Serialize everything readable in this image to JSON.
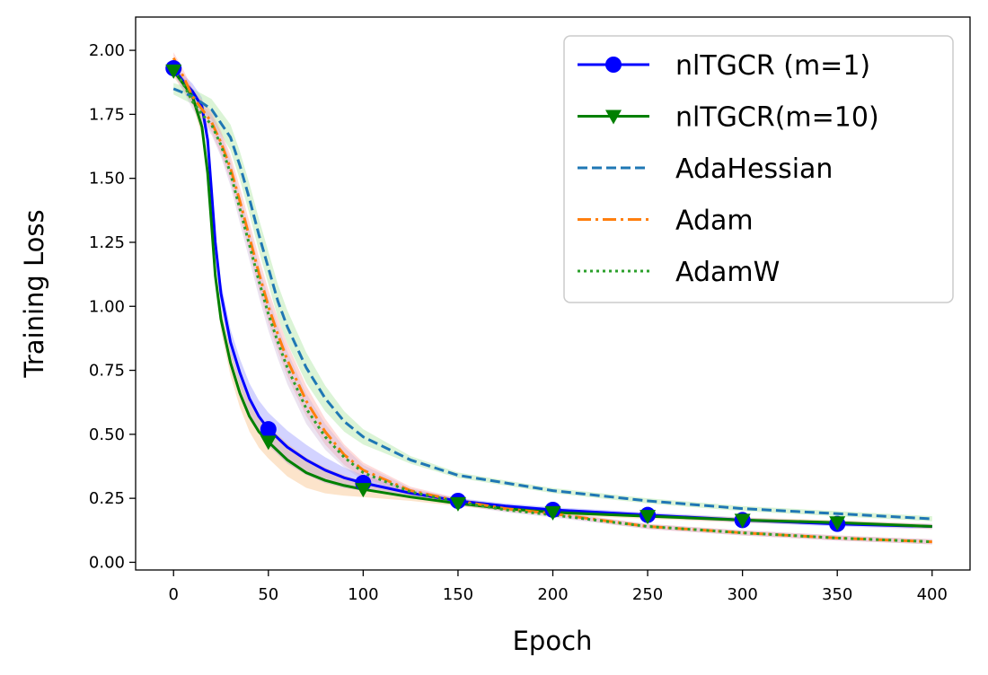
{
  "chart_data": {
    "type": "line",
    "title": "",
    "xlabel": "Epoch",
    "ylabel": "Training Loss",
    "xlim": [
      -20,
      420
    ],
    "ylim": [
      -0.03,
      2.13
    ],
    "xticks": [
      0,
      50,
      100,
      150,
      200,
      250,
      300,
      350,
      400
    ],
    "xtick_labels": [
      "0",
      "50",
      "100",
      "150",
      "200",
      "250",
      "300",
      "350",
      "400"
    ],
    "yticks": [
      0.0,
      0.25,
      0.5,
      0.75,
      1.0,
      1.25,
      1.5,
      1.75,
      2.0
    ],
    "ytick_labels": [
      "0.00",
      "0.25",
      "0.50",
      "0.75",
      "1.00",
      "1.25",
      "1.50",
      "1.75",
      "2.00"
    ],
    "grid": false,
    "legend_position": "top-right",
    "series": [
      {
        "name": "nlTGCR (m=1)",
        "color": "#0000ff",
        "style": "solid",
        "marker": "circle",
        "band_color": "#8080ff",
        "x": [
          0,
          5,
          10,
          15,
          18,
          20,
          22,
          25,
          30,
          35,
          40,
          45,
          50,
          60,
          70,
          80,
          90,
          100,
          125,
          150,
          175,
          200,
          250,
          300,
          350,
          400
        ],
        "y": [
          1.93,
          1.88,
          1.84,
          1.78,
          1.65,
          1.45,
          1.25,
          1.05,
          0.86,
          0.74,
          0.64,
          0.57,
          0.52,
          0.45,
          0.4,
          0.36,
          0.33,
          0.31,
          0.27,
          0.24,
          0.22,
          0.205,
          0.185,
          0.165,
          0.15,
          0.14
        ],
        "marker_x": [
          0,
          50,
          100,
          150,
          200,
          250,
          300,
          350
        ],
        "marker_y": [
          1.93,
          0.52,
          0.31,
          0.24,
          0.205,
          0.185,
          0.165,
          0.15
        ]
      },
      {
        "name": "nlTGCR(m=10)",
        "color": "#008000",
        "style": "solid",
        "marker": "triangle-down",
        "band_color": "#f6b26b",
        "x": [
          0,
          5,
          10,
          15,
          18,
          20,
          22,
          25,
          30,
          35,
          40,
          45,
          50,
          60,
          70,
          80,
          90,
          100,
          125,
          150,
          175,
          200,
          250,
          300,
          350,
          400
        ],
        "y": [
          1.92,
          1.87,
          1.82,
          1.7,
          1.52,
          1.32,
          1.12,
          0.95,
          0.78,
          0.66,
          0.57,
          0.51,
          0.47,
          0.4,
          0.35,
          0.32,
          0.3,
          0.285,
          0.255,
          0.23,
          0.21,
          0.195,
          0.18,
          0.165,
          0.155,
          0.14
        ],
        "marker_x": [
          0,
          50,
          100,
          150,
          200,
          250,
          300,
          350
        ],
        "marker_y": [
          1.92,
          0.47,
          0.285,
          0.23,
          0.195,
          0.18,
          0.165,
          0.155
        ]
      },
      {
        "name": "AdaHessian",
        "color": "#1f77b4",
        "style": "dashed",
        "marker": "none",
        "band_color": "#98df8a",
        "x": [
          0,
          10,
          20,
          30,
          35,
          40,
          45,
          50,
          55,
          60,
          70,
          80,
          90,
          100,
          125,
          150,
          175,
          200,
          250,
          300,
          350,
          400
        ],
        "y": [
          1.85,
          1.82,
          1.77,
          1.66,
          1.55,
          1.42,
          1.28,
          1.15,
          1.02,
          0.92,
          0.76,
          0.64,
          0.55,
          0.49,
          0.4,
          0.34,
          0.31,
          0.28,
          0.24,
          0.21,
          0.19,
          0.17
        ]
      },
      {
        "name": "Adam",
        "color": "#ff7f0e",
        "style": "dashdot",
        "marker": "none",
        "band_color": "#ff9896",
        "x": [
          0,
          5,
          10,
          15,
          20,
          25,
          30,
          35,
          40,
          45,
          50,
          55,
          60,
          70,
          80,
          90,
          100,
          125,
          150,
          175,
          200,
          250,
          300,
          350,
          400
        ],
        "y": [
          1.97,
          1.9,
          1.82,
          1.77,
          1.72,
          1.64,
          1.54,
          1.41,
          1.27,
          1.13,
          1.0,
          0.89,
          0.79,
          0.63,
          0.51,
          0.42,
          0.36,
          0.28,
          0.24,
          0.21,
          0.19,
          0.14,
          0.115,
          0.095,
          0.08
        ]
      },
      {
        "name": "AdamW",
        "color": "#2ca02c",
        "style": "dotted",
        "marker": "none",
        "band_color": "#c5b0d5",
        "x": [
          0,
          5,
          10,
          15,
          20,
          25,
          30,
          35,
          40,
          45,
          50,
          55,
          60,
          70,
          80,
          90,
          100,
          125,
          150,
          175,
          200,
          250,
          300,
          350,
          400
        ],
        "y": [
          1.93,
          1.87,
          1.8,
          1.75,
          1.71,
          1.63,
          1.52,
          1.38,
          1.24,
          1.1,
          0.97,
          0.86,
          0.76,
          0.6,
          0.49,
          0.41,
          0.35,
          0.275,
          0.235,
          0.205,
          0.185,
          0.14,
          0.115,
          0.095,
          0.08
        ]
      }
    ]
  }
}
